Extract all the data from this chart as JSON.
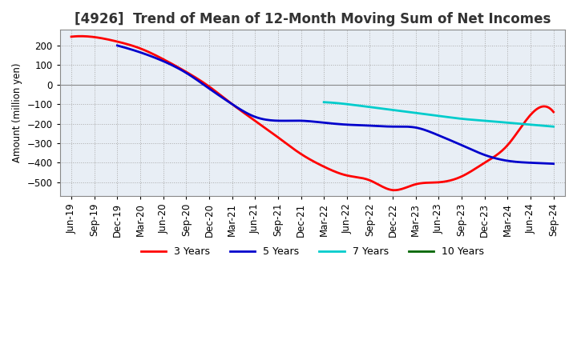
{
  "title": "[4926]  Trend of Mean of 12-Month Moving Sum of Net Incomes",
  "ylabel": "Amount (million yen)",
  "ylim": [
    -570,
    280
  ],
  "yticks": [
    200,
    100,
    0,
    -100,
    -200,
    -300,
    -400,
    -500
  ],
  "line_colors": {
    "3 Years": "#ff0000",
    "5 Years": "#0000cc",
    "7 Years": "#00cccc",
    "10 Years": "#006600"
  },
  "x_labels": [
    "Jun-19",
    "Sep-19",
    "Dec-19",
    "Mar-20",
    "Jun-20",
    "Sep-20",
    "Dec-20",
    "Mar-21",
    "Jun-21",
    "Sep-21",
    "Dec-21",
    "Mar-22",
    "Jun-22",
    "Sep-22",
    "Dec-22",
    "Mar-23",
    "Jun-23",
    "Sep-23",
    "Dec-23",
    "Mar-24",
    "Jun-24",
    "Sep-24"
  ],
  "series_3yr": [
    245,
    243,
    220,
    185,
    130,
    65,
    -10,
    -100,
    -185,
    -270,
    -355,
    -420,
    -465,
    -490,
    -540,
    -510,
    -500,
    -470,
    -400,
    -310,
    -155,
    -140
  ],
  "series_5yr": [
    null,
    null,
    200,
    165,
    120,
    60,
    -20,
    -100,
    -165,
    -185,
    -185,
    -195,
    -205,
    -210,
    -215,
    -220,
    -260,
    -310,
    -360,
    -390,
    -400,
    -405
  ],
  "series_7yr": [
    null,
    null,
    null,
    null,
    null,
    null,
    null,
    null,
    null,
    null,
    null,
    -90,
    -100,
    -115,
    -130,
    -145,
    -160,
    -175,
    -185,
    -195,
    -205,
    -215
  ],
  "series_10yr": [
    null,
    null,
    null,
    null,
    null,
    null,
    null,
    null,
    null,
    null,
    null,
    null,
    null,
    null,
    null,
    null,
    null,
    null,
    null,
    null,
    null,
    null
  ],
  "background_color": "#ffffff",
  "plot_bg_color": "#e8eef5",
  "grid_color": "#aaaaaa",
  "title_fontsize": 12,
  "axis_fontsize": 8.5,
  "legend_fontsize": 9
}
